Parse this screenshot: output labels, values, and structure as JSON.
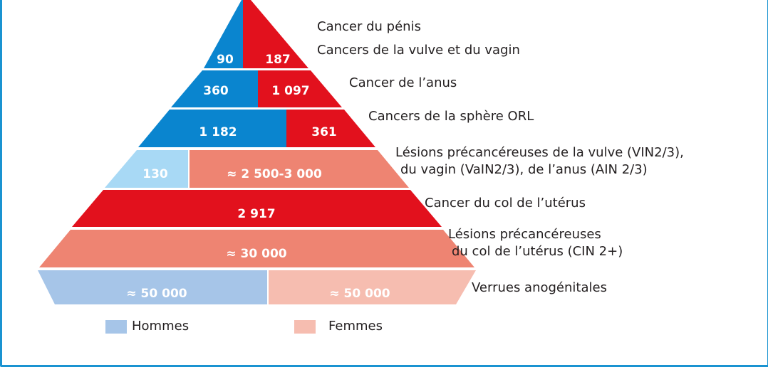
{
  "colors": {
    "men_dark": "#0a85cf",
    "men_light": "#a8d9f5",
    "men_legend": "#a6c5e8",
    "women_dark": "#e2111d",
    "women_mid": "#ee8472",
    "women_light": "#f6bdb0",
    "frame": "#1a93d1"
  },
  "tiers": [
    {
      "men": "90",
      "women": "187",
      "label_lines": [
        "Cancer du pénis",
        "Cancers de la vulve et du vagin"
      ]
    },
    {
      "men": "360",
      "women": "1 097",
      "label_lines": [
        "Cancer de l’anus"
      ]
    },
    {
      "men": "1 182",
      "women": "361",
      "label_lines": [
        "Cancers de la sphère ORL"
      ]
    },
    {
      "men": "130",
      "women": "≈ 2 500-3 000",
      "label_lines": [
        "Lésions précancéreuses de la vulve (VIN2/3),",
        "du vagin (VaIN2/3), de l’anus (AIN 2/3)"
      ]
    },
    {
      "women": "2 917",
      "label_lines": [
        "Cancer du col de l’utérus"
      ]
    },
    {
      "women": "≈ 30 000",
      "label_lines": [
        "Lésions précancéreuses",
        "du col de l’utérus (CIN 2+)"
      ]
    },
    {
      "men": "≈ 50 000",
      "women": "≈ 50 000",
      "label_lines": [
        "Verrues anogénitales"
      ]
    }
  ],
  "legend": {
    "men": "Hommes",
    "women": "Femmes"
  }
}
